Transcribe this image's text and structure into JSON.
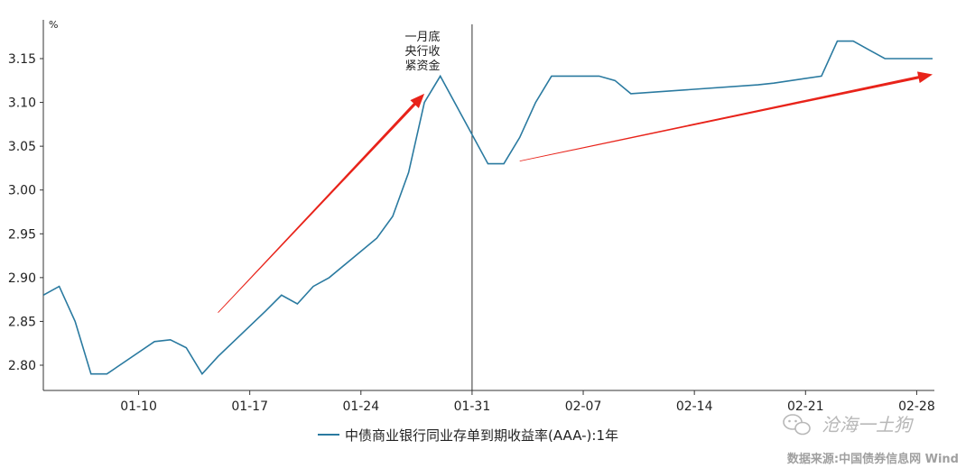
{
  "colors": {
    "series": "#2a7aa0",
    "arrow": "#e8231a",
    "axis": "#333333",
    "divider": "#333333"
  },
  "chart_data": {
    "type": "line",
    "ylabel": "%",
    "ylim": [
      2.775,
      3.18
    ],
    "yticks": [
      "3.15",
      "3.10",
      "3.05",
      "3.00",
      "2.95",
      "2.90",
      "2.85",
      "2.80"
    ],
    "xticks": [
      "01-10",
      "01-17",
      "01-24",
      "01-31",
      "02-07",
      "02-14",
      "02-21",
      "02-28"
    ],
    "grid": false,
    "legend_position": "bottom",
    "series": [
      {
        "name": "中债商业银行同业存单到期收益率(AAA-):1年",
        "x": [
          "01-04",
          "01-05",
          "01-06",
          "01-07",
          "01-08",
          "01-11",
          "01-12",
          "01-13",
          "01-14",
          "01-15",
          "01-18",
          "01-19",
          "01-20",
          "01-21",
          "01-22",
          "01-25",
          "01-26",
          "01-27",
          "01-28",
          "01-29",
          "02-01",
          "02-02",
          "02-03",
          "02-04",
          "02-05",
          "02-08",
          "02-09",
          "02-10",
          "02-18",
          "02-19",
          "02-22",
          "02-23",
          "02-24",
          "02-25",
          "02-26",
          "03-01"
        ],
        "values": [
          2.88,
          2.89,
          2.85,
          2.79,
          2.79,
          2.827,
          2.829,
          2.82,
          2.79,
          2.81,
          2.862,
          2.88,
          2.87,
          2.89,
          2.9,
          2.945,
          2.97,
          3.02,
          3.1,
          3.13,
          3.03,
          3.03,
          3.06,
          3.1,
          3.13,
          3.13,
          3.125,
          3.11,
          3.12,
          3.122,
          3.13,
          3.17,
          3.17,
          3.16,
          3.15,
          3.15
        ]
      }
    ],
    "annotations": [
      {
        "text_lines": [
          "一月底",
          "央行收",
          "紧资金"
        ],
        "x": "01-29"
      }
    ],
    "divider_x": "01-31",
    "arrows": [
      {
        "from": {
          "x": "01-15",
          "y": 2.86
        },
        "to": {
          "x": "01-28",
          "y": 3.11
        }
      },
      {
        "from": {
          "x": "02-03",
          "y": 3.033
        },
        "to": {
          "x": "03-01",
          "y": 3.132
        }
      }
    ]
  },
  "watermark": "沧海一土狗",
  "watermark_icon": "wechat-icon",
  "source": "数据来源:中国债券信息网 Wind"
}
